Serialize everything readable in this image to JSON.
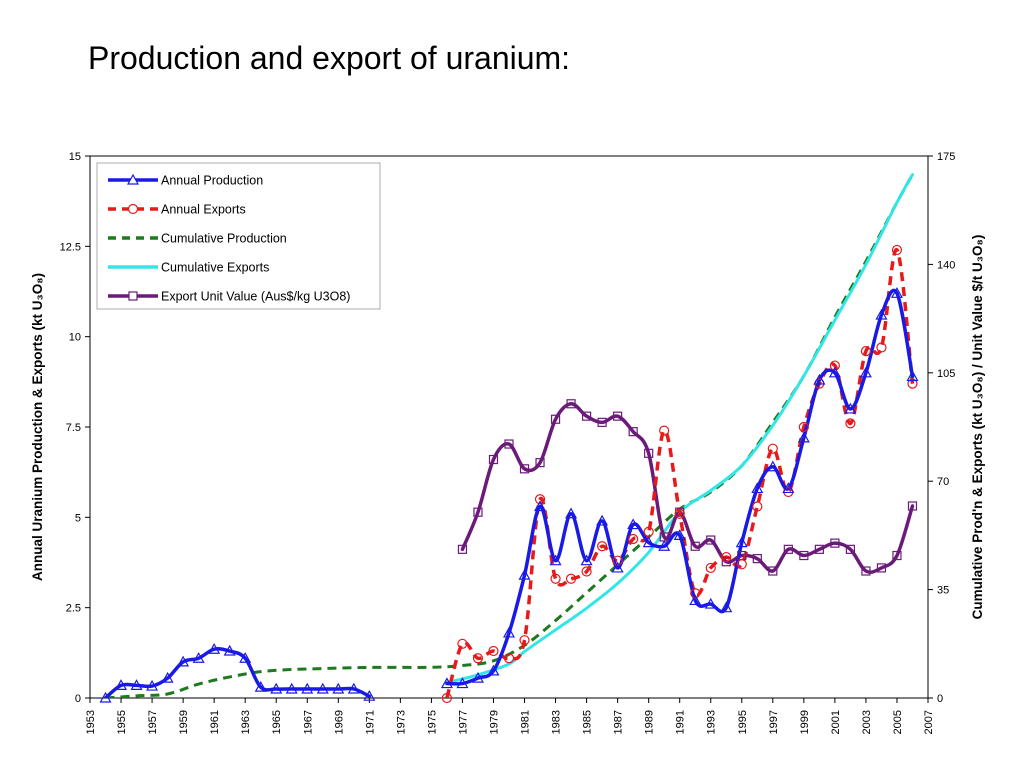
{
  "slide": {
    "title": "Production and export of uranium:"
  },
  "colors": {
    "production": "#1a1ae6",
    "exports": "#e61a1a",
    "cumulative_production": "#1e7a1e",
    "cumulative_exports": "#33e6e6",
    "unit_value": "#6b1a7a"
  },
  "chart_data": {
    "type": "line",
    "ylabel": "Annual Uranium Production & Exports (kt U₃O₈)",
    "y2label": "Cumulative Prod'n & Exports (kt U₃O₈) / Unit Value $/t U₃O₈)",
    "ylim": [
      0,
      15
    ],
    "y2lim": [
      0,
      175
    ],
    "xlim": [
      1953,
      2007
    ],
    "yticks": [
      "0",
      "2.5",
      "5",
      "7.5",
      "10",
      "12.5",
      "15"
    ],
    "y2ticks": [
      "0",
      "35",
      "70",
      "105",
      "140",
      "175"
    ],
    "xticks": [
      "1953",
      "1955",
      "1957",
      "1959",
      "1961",
      "1963",
      "1965",
      "1967",
      "1969",
      "1971",
      "1973",
      "1975",
      "1977",
      "1979",
      "1981",
      "1983",
      "1985",
      "1987",
      "1989",
      "1991",
      "1993",
      "1995",
      "1997",
      "1999",
      "2001",
      "2003",
      "2005",
      "2007"
    ],
    "legend_position": "top-left",
    "series": [
      {
        "name": "Annual Production",
        "axis": "left",
        "style": "solid",
        "marker": "triangle",
        "color": "#1a1ae6",
        "points": [
          [
            1954,
            0
          ],
          [
            1955,
            0.35
          ],
          [
            1956,
            0.35
          ],
          [
            1957,
            0.33
          ],
          [
            1958,
            0.55
          ],
          [
            1959,
            1.0
          ],
          [
            1960,
            1.1
          ],
          [
            1961,
            1.35
          ],
          [
            1962,
            1.3
          ],
          [
            1963,
            1.1
          ],
          [
            1964,
            0.3
          ],
          [
            1965,
            0.25
          ],
          [
            1966,
            0.25
          ],
          [
            1967,
            0.25
          ],
          [
            1968,
            0.25
          ],
          [
            1969,
            0.25
          ],
          [
            1970,
            0.25
          ],
          [
            1971,
            0.05
          ],
          [
            1976,
            0.4
          ],
          [
            1977,
            0.4
          ],
          [
            1978,
            0.55
          ],
          [
            1979,
            0.75
          ],
          [
            1980,
            1.8
          ],
          [
            1981,
            3.4
          ],
          [
            1982,
            5.3
          ],
          [
            1983,
            3.8
          ],
          [
            1984,
            5.1
          ],
          [
            1985,
            3.8
          ],
          [
            1986,
            4.9
          ],
          [
            1987,
            3.6
          ],
          [
            1988,
            4.8
          ],
          [
            1989,
            4.3
          ],
          [
            1990,
            4.2
          ],
          [
            1991,
            4.5
          ],
          [
            1992,
            2.7
          ],
          [
            1993,
            2.6
          ],
          [
            1994,
            2.5
          ],
          [
            1995,
            4.3
          ],
          [
            1996,
            5.8
          ],
          [
            1997,
            6.4
          ],
          [
            1998,
            5.8
          ],
          [
            1999,
            7.2
          ],
          [
            2000,
            8.8
          ],
          [
            2001,
            9.0
          ],
          [
            2002,
            8.0
          ],
          [
            2003,
            9.0
          ],
          [
            2004,
            10.6
          ],
          [
            2005,
            11.2
          ],
          [
            2006,
            8.9
          ]
        ]
      },
      {
        "name": "Annual Exports",
        "axis": "left",
        "style": "dashed",
        "marker": "circle",
        "color": "#e61a1a",
        "points": [
          [
            1976,
            0
          ],
          [
            1977,
            1.5
          ],
          [
            1978,
            1.1
          ],
          [
            1979,
            1.3
          ],
          [
            1980,
            1.1
          ],
          [
            1981,
            1.6
          ],
          [
            1982,
            5.5
          ],
          [
            1983,
            3.3
          ],
          [
            1984,
            3.3
          ],
          [
            1985,
            3.5
          ],
          [
            1986,
            4.2
          ],
          [
            1987,
            3.8
          ],
          [
            1988,
            4.4
          ],
          [
            1989,
            4.6
          ],
          [
            1990,
            7.4
          ],
          [
            1991,
            5.1
          ],
          [
            1992,
            2.9
          ],
          [
            1993,
            3.6
          ],
          [
            1994,
            3.9
          ],
          [
            1995,
            3.7
          ],
          [
            1996,
            5.3
          ],
          [
            1997,
            6.9
          ],
          [
            1998,
            5.7
          ],
          [
            1999,
            7.5
          ],
          [
            2000,
            8.7
          ],
          [
            2001,
            9.2
          ],
          [
            2002,
            7.6
          ],
          [
            2003,
            9.6
          ],
          [
            2004,
            9.7
          ],
          [
            2005,
            12.4
          ],
          [
            2006,
            8.7
          ]
        ]
      },
      {
        "name": "Cumulative Production",
        "axis": "right",
        "style": "dashed",
        "marker": "none",
        "color": "#1e7a1e",
        "points": [
          [
            1954,
            0
          ],
          [
            1956,
            0.7
          ],
          [
            1958,
            1.3
          ],
          [
            1960,
            4.5
          ],
          [
            1962,
            6.8
          ],
          [
            1964,
            8.5
          ],
          [
            1966,
            9.2
          ],
          [
            1968,
            9.5
          ],
          [
            1970,
            9.8
          ],
          [
            1972,
            9.9
          ],
          [
            1975,
            9.9
          ],
          [
            1977,
            10.5
          ],
          [
            1979,
            12
          ],
          [
            1981,
            17
          ],
          [
            1983,
            25
          ],
          [
            1985,
            34
          ],
          [
            1987,
            43
          ],
          [
            1989,
            52
          ],
          [
            1991,
            61
          ],
          [
            1993,
            66.5
          ],
          [
            1995,
            75
          ],
          [
            1997,
            89
          ],
          [
            1999,
            104
          ],
          [
            2001,
            123
          ],
          [
            2003,
            141
          ],
          [
            2005,
            160
          ],
          [
            2006,
            169
          ]
        ]
      },
      {
        "name": "Cumulative Exports",
        "axis": "right",
        "style": "solid",
        "marker": "none",
        "color": "#33e6e6",
        "points": [
          [
            1976,
            5
          ],
          [
            1978,
            7.5
          ],
          [
            1980,
            11
          ],
          [
            1981,
            15
          ],
          [
            1983,
            22
          ],
          [
            1985,
            29
          ],
          [
            1987,
            37
          ],
          [
            1989,
            47
          ],
          [
            1991,
            60
          ],
          [
            1993,
            67
          ],
          [
            1995,
            75
          ],
          [
            1997,
            88
          ],
          [
            1999,
            104
          ],
          [
            2001,
            122
          ],
          [
            2003,
            140
          ],
          [
            2005,
            160
          ],
          [
            2006,
            169
          ]
        ]
      },
      {
        "name": "Export Unit Value (Aus$/kg U3O8)",
        "axis": "right",
        "style": "solid",
        "marker": "square",
        "color": "#6b1a7a",
        "points": [
          [
            1977,
            48
          ],
          [
            1978,
            60
          ],
          [
            1979,
            77
          ],
          [
            1980,
            82
          ],
          [
            1981,
            74
          ],
          [
            1982,
            76
          ],
          [
            1983,
            90
          ],
          [
            1984,
            95
          ],
          [
            1985,
            91
          ],
          [
            1986,
            89
          ],
          [
            1987,
            91
          ],
          [
            1988,
            86
          ],
          [
            1989,
            79
          ],
          [
            1990,
            52
          ],
          [
            1991,
            60
          ],
          [
            1992,
            49
          ],
          [
            1993,
            51
          ],
          [
            1994,
            44
          ],
          [
            1995,
            46
          ],
          [
            1996,
            45
          ],
          [
            1997,
            41
          ],
          [
            1998,
            48
          ],
          [
            1999,
            46
          ],
          [
            2000,
            48
          ],
          [
            2001,
            50
          ],
          [
            2002,
            48
          ],
          [
            2003,
            41
          ],
          [
            2004,
            42
          ],
          [
            2005,
            46
          ],
          [
            2006,
            62
          ]
        ]
      }
    ]
  }
}
